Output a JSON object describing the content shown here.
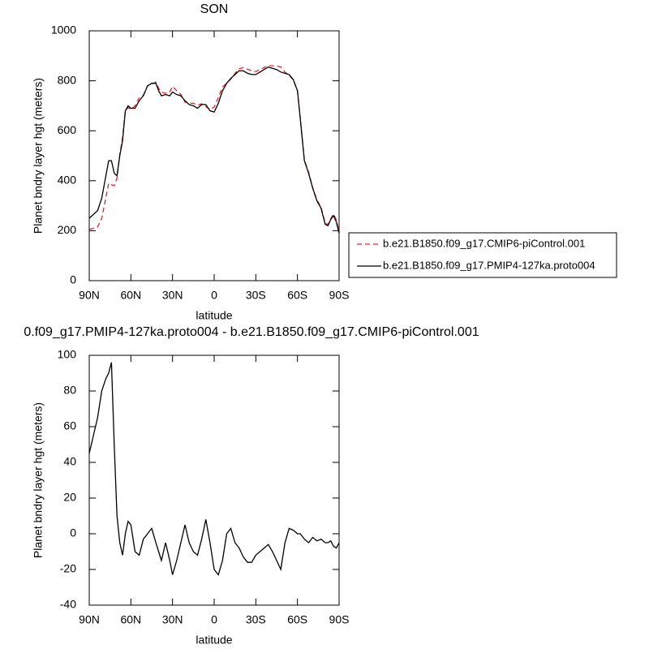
{
  "chart_data": [
    {
      "type": "line",
      "title": "SON",
      "xlabel": "latitude",
      "ylabel": "Planet bndry layer hgt (meters)",
      "x": [
        90,
        87,
        84,
        81,
        78,
        76,
        74,
        72,
        70,
        68,
        66,
        64,
        62,
        60,
        57,
        54,
        51,
        48,
        45,
        42,
        40,
        38,
        35,
        32,
        30,
        27,
        24,
        21,
        18,
        15,
        12,
        9,
        6,
        3,
        0,
        -3,
        -6,
        -9,
        -12,
        -15,
        -18,
        -21,
        -24,
        -27,
        -30,
        -33,
        -36,
        -39,
        -42,
        -45,
        -48,
        -51,
        -54,
        -57,
        -60,
        -62,
        -65,
        -68,
        -71,
        -74,
        -77,
        -80,
        -82,
        -84,
        -86,
        -88,
        -90
      ],
      "series": [
        {
          "name": "b.e21.B1850.f09_g17.CMIP6-piControl.001",
          "color": "#e8202a",
          "line_style": "dashed",
          "values": [
            205,
            210,
            215,
            250,
            333,
            390,
            384,
            380,
            410,
            505,
            572,
            680,
            693,
            685,
            700,
            732,
            743,
            780,
            787,
            795,
            770,
            755,
            750,
            755,
            778,
            760,
            745,
            715,
            710,
            710,
            702,
            708,
            697,
            685,
            695,
            733,
            775,
            790,
            807,
            830,
            848,
            853,
            846,
            841,
            837,
            845,
            853,
            861,
            860,
            860,
            855,
            835,
            822,
            803,
            760,
            650,
            483,
            435,
            372,
            324,
            293,
            230,
            225,
            249,
            267,
            243,
            195
          ]
        },
        {
          "name": "b.e21.B1850.f09_g17.PMIP4-127ka.proto004",
          "color": "#000000",
          "line_style": "solid",
          "values": [
            250,
            265,
            280,
            330,
            420,
            480,
            480,
            430,
            420,
            500,
            560,
            680,
            700,
            690,
            690,
            720,
            740,
            780,
            790,
            790,
            760,
            740,
            745,
            740,
            755,
            745,
            740,
            720,
            705,
            700,
            690,
            705,
            705,
            680,
            675,
            710,
            760,
            790,
            810,
            825,
            840,
            840,
            830,
            825,
            825,
            835,
            845,
            855,
            850,
            845,
            835,
            830,
            825,
            805,
            760,
            650,
            480,
            430,
            370,
            320,
            290,
            225,
            220,
            245,
            260,
            235,
            190
          ]
        }
      ],
      "xlim": [
        90,
        -90
      ],
      "xticks": [
        {
          "value": 90,
          "label": "90N"
        },
        {
          "value": 60,
          "label": "60N"
        },
        {
          "value": 30,
          "label": "30N"
        },
        0,
        {
          "value": -30,
          "label": "30S"
        },
        {
          "value": -60,
          "label": "60S"
        },
        {
          "value": -90,
          "label": "90S"
        }
      ],
      "ylim": [
        0,
        1000
      ],
      "yticks": [
        0,
        200,
        400,
        600,
        800,
        1000
      ],
      "legend": "outside-right"
    },
    {
      "type": "line",
      "title": "0.f09_g17.PMIP4-127ka.proto004 - b.e21.B1850.f09_g17.CMIP6-piControl.001",
      "xlabel": "latitude",
      "ylabel": "Planet bndry layer hgt (meters)",
      "x": [
        90,
        87,
        84,
        81,
        78,
        76,
        74,
        72,
        70,
        68,
        66,
        64,
        62,
        60,
        57,
        54,
        51,
        48,
        45,
        42,
        40,
        38,
        35,
        32,
        30,
        27,
        24,
        21,
        18,
        15,
        12,
        9,
        6,
        3,
        0,
        -3,
        -6,
        -9,
        -12,
        -15,
        -18,
        -21,
        -24,
        -27,
        -30,
        -33,
        -36,
        -39,
        -42,
        -45,
        -48,
        -51,
        -54,
        -57,
        -60,
        -62,
        -65,
        -68,
        -71,
        -74,
        -77,
        -80,
        -82,
        -84,
        -86,
        -88,
        -90
      ],
      "values": [
        45,
        55,
        65,
        80,
        87,
        90,
        96,
        50,
        10,
        -5,
        -12,
        0,
        7,
        5,
        -10,
        -12,
        -3,
        0,
        3,
        -5,
        -10,
        -15,
        -5,
        -15,
        -23,
        -15,
        -5,
        5,
        -5,
        -10,
        -12,
        -3,
        8,
        -5,
        -20,
        -23,
        -15,
        0,
        3,
        -5,
        -8,
        -13,
        -16,
        -16,
        -12,
        -10,
        -8,
        -6,
        -10,
        -15,
        -20,
        -5,
        3,
        2,
        0,
        0,
        -3,
        -5,
        -2,
        -4,
        -3,
        -5,
        -5,
        -4,
        -7,
        -8,
        -5
      ],
      "color": "#000000",
      "xlim": [
        90,
        -90
      ],
      "xticks": [
        {
          "value": 90,
          "label": "90N"
        },
        {
          "value": 60,
          "label": "60N"
        },
        {
          "value": 30,
          "label": "30N"
        },
        0,
        {
          "value": -30,
          "label": "30S"
        },
        {
          "value": -60,
          "label": "60S"
        },
        {
          "value": -90,
          "label": "90S"
        }
      ],
      "ylim": [
        -40,
        100
      ],
      "yticks": [
        -40,
        -20,
        0,
        20,
        40,
        60,
        80,
        100
      ]
    }
  ]
}
